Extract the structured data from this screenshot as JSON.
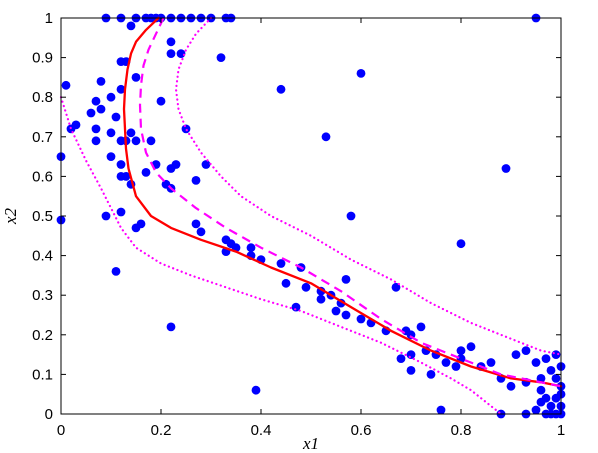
{
  "chart_data": {
    "type": "scatter",
    "title": "",
    "xlabel": "x1",
    "ylabel": "x2",
    "xlim": [
      0,
      1
    ],
    "ylim": [
      0,
      1
    ],
    "grid": false,
    "x_ticks": [
      "0",
      "0.2",
      "0.4",
      "0.6",
      "0.8",
      "1"
    ],
    "y_ticks": [
      "0",
      "0.1",
      "0.2",
      "0.3",
      "0.4",
      "0.5",
      "0.6",
      "0.7",
      "0.8",
      "0.9",
      "1"
    ],
    "colors": {
      "points": "#0000ff",
      "solid_curve": "#ff0000",
      "dashed_curve": "#ff00ff",
      "dotted_bounds": "#ff00ff",
      "axes": "#000000"
    },
    "points": [
      [
        0.09,
        1.0
      ],
      [
        0.12,
        1.0
      ],
      [
        0.15,
        1.0
      ],
      [
        0.17,
        1.0
      ],
      [
        0.18,
        1.0
      ],
      [
        0.19,
        1.0
      ],
      [
        0.2,
        1.0
      ],
      [
        0.22,
        1.0
      ],
      [
        0.24,
        1.0
      ],
      [
        0.26,
        1.0
      ],
      [
        0.28,
        1.0
      ],
      [
        0.3,
        1.0
      ],
      [
        0.33,
        1.0
      ],
      [
        0.34,
        1.0
      ],
      [
        0.95,
        1.0
      ],
      [
        0.14,
        0.98
      ],
      [
        0.22,
        0.94
      ],
      [
        0.24,
        0.91
      ],
      [
        0.22,
        0.91
      ],
      [
        0.32,
        0.9
      ],
      [
        0.12,
        0.89
      ],
      [
        0.13,
        0.89
      ],
      [
        0.15,
        0.85
      ],
      [
        0.01,
        0.83
      ],
      [
        0.08,
        0.84
      ],
      [
        0.6,
        0.86
      ],
      [
        0.44,
        0.82
      ],
      [
        0.1,
        0.8
      ],
      [
        0.12,
        0.82
      ],
      [
        0.07,
        0.79
      ],
      [
        0.06,
        0.76
      ],
      [
        0.08,
        0.77
      ],
      [
        0.11,
        0.75
      ],
      [
        0.2,
        0.79
      ],
      [
        0.02,
        0.72
      ],
      [
        0.03,
        0.73
      ],
      [
        0.07,
        0.72
      ],
      [
        0.1,
        0.71
      ],
      [
        0.14,
        0.71
      ],
      [
        0.25,
        0.72
      ],
      [
        0.07,
        0.69
      ],
      [
        0.1,
        0.65
      ],
      [
        0.12,
        0.69
      ],
      [
        0.13,
        0.69
      ],
      [
        0.12,
        0.63
      ],
      [
        0.15,
        0.69
      ],
      [
        0.18,
        0.69
      ],
      [
        0.19,
        0.63
      ],
      [
        0.22,
        0.62
      ],
      [
        0.23,
        0.63
      ],
      [
        0.29,
        0.63
      ],
      [
        0.53,
        0.7
      ],
      [
        0.0,
        0.65
      ],
      [
        0.12,
        0.6
      ],
      [
        0.13,
        0.6
      ],
      [
        0.14,
        0.58
      ],
      [
        0.17,
        0.61
      ],
      [
        0.21,
        0.58
      ],
      [
        0.22,
        0.57
      ],
      [
        0.27,
        0.59
      ],
      [
        0.89,
        0.62
      ],
      [
        0.0,
        0.49
      ],
      [
        0.09,
        0.5
      ],
      [
        0.12,
        0.51
      ],
      [
        0.15,
        0.47
      ],
      [
        0.16,
        0.48
      ],
      [
        0.27,
        0.48
      ],
      [
        0.28,
        0.46
      ],
      [
        0.58,
        0.5
      ],
      [
        0.33,
        0.44
      ],
      [
        0.34,
        0.43
      ],
      [
        0.35,
        0.42
      ],
      [
        0.33,
        0.41
      ],
      [
        0.38,
        0.42
      ],
      [
        0.38,
        0.4
      ],
      [
        0.4,
        0.39
      ],
      [
        0.44,
        0.38
      ],
      [
        0.48,
        0.37
      ],
      [
        0.8,
        0.43
      ],
      [
        0.11,
        0.36
      ],
      [
        0.45,
        0.33
      ],
      [
        0.49,
        0.32
      ],
      [
        0.52,
        0.31
      ],
      [
        0.52,
        0.29
      ],
      [
        0.54,
        0.3
      ],
      [
        0.56,
        0.28
      ],
      [
        0.57,
        0.34
      ],
      [
        0.67,
        0.32
      ],
      [
        0.47,
        0.27
      ],
      [
        0.55,
        0.26
      ],
      [
        0.57,
        0.25
      ],
      [
        0.6,
        0.24
      ],
      [
        0.62,
        0.23
      ],
      [
        0.65,
        0.21
      ],
      [
        0.69,
        0.21
      ],
      [
        0.7,
        0.2
      ],
      [
        0.72,
        0.22
      ],
      [
        0.22,
        0.22
      ],
      [
        0.7,
        0.15
      ],
      [
        0.73,
        0.16
      ],
      [
        0.75,
        0.15
      ],
      [
        0.77,
        0.13
      ],
      [
        0.8,
        0.14
      ],
      [
        0.84,
        0.12
      ],
      [
        0.86,
        0.13
      ],
      [
        0.8,
        0.16
      ],
      [
        0.82,
        0.17
      ],
      [
        0.68,
        0.14
      ],
      [
        0.7,
        0.11
      ],
      [
        0.74,
        0.1
      ],
      [
        0.79,
        0.12
      ],
      [
        0.91,
        0.15
      ],
      [
        0.93,
        0.16
      ],
      [
        0.95,
        0.13
      ],
      [
        0.97,
        0.14
      ],
      [
        0.99,
        0.15
      ],
      [
        1.0,
        0.12
      ],
      [
        0.88,
        0.09
      ],
      [
        0.9,
        0.07
      ],
      [
        0.93,
        0.08
      ],
      [
        0.96,
        0.09
      ],
      [
        0.98,
        0.11
      ],
      [
        0.99,
        0.09
      ],
      [
        1.0,
        0.07
      ],
      [
        1.0,
        0.05
      ],
      [
        0.99,
        0.04
      ],
      [
        0.97,
        0.04
      ],
      [
        0.96,
        0.06
      ],
      [
        0.39,
        0.06
      ],
      [
        0.76,
        0.01
      ],
      [
        0.88,
        0.0
      ],
      [
        0.93,
        0.0
      ],
      [
        0.95,
        0.01
      ],
      [
        0.97,
        0.0
      ],
      [
        0.98,
        0.02
      ],
      [
        0.99,
        0.0
      ],
      [
        1.0,
        0.0
      ],
      [
        1.0,
        0.02
      ],
      [
        0.98,
        0.0
      ],
      [
        0.96,
        0.03
      ]
    ],
    "series": [
      {
        "style": "solid",
        "x": [
          0.195,
          0.17,
          0.15,
          0.14,
          0.133,
          0.128,
          0.126,
          0.128,
          0.13,
          0.135,
          0.15,
          0.18,
          0.22,
          0.28,
          0.35,
          0.42,
          0.5,
          0.58,
          0.66,
          0.74,
          0.82,
          0.9,
          0.96,
          1.0
        ],
        "y": [
          1.0,
          0.97,
          0.94,
          0.91,
          0.87,
          0.82,
          0.77,
          0.72,
          0.67,
          0.62,
          0.55,
          0.5,
          0.47,
          0.44,
          0.41,
          0.37,
          0.33,
          0.27,
          0.21,
          0.16,
          0.12,
          0.09,
          0.08,
          0.07
        ]
      },
      {
        "style": "dashed",
        "x": [
          0.205,
          0.19,
          0.175,
          0.165,
          0.16,
          0.158,
          0.16,
          0.17,
          0.19,
          0.22,
          0.27,
          0.33,
          0.4,
          0.48,
          0.56,
          0.64,
          0.72,
          0.8,
          0.88,
          0.96,
          1.0
        ],
        "y": [
          1.0,
          0.96,
          0.92,
          0.88,
          0.83,
          0.78,
          0.72,
          0.66,
          0.61,
          0.57,
          0.52,
          0.47,
          0.42,
          0.37,
          0.31,
          0.24,
          0.18,
          0.14,
          0.1,
          0.08,
          0.07
        ]
      },
      {
        "style": "dotted",
        "x": [
          0.3,
          0.27,
          0.25,
          0.235,
          0.23,
          0.235,
          0.25,
          0.28,
          0.32,
          0.36,
          0.42,
          0.5,
          0.58,
          0.66,
          0.74,
          0.82,
          0.9,
          0.96,
          1.0
        ],
        "y": [
          1.0,
          0.96,
          0.92,
          0.87,
          0.82,
          0.77,
          0.72,
          0.66,
          0.6,
          0.55,
          0.5,
          0.45,
          0.39,
          0.34,
          0.28,
          0.23,
          0.19,
          0.16,
          0.15
        ]
      },
      {
        "style": "dotted",
        "x": [
          0.0,
          0.02,
          0.05,
          0.08,
          0.1,
          0.12,
          0.15,
          0.2,
          0.26,
          0.33,
          0.4,
          0.48,
          0.56,
          0.64,
          0.72,
          0.78,
          0.82,
          0.85,
          0.87,
          0.88
        ],
        "y": [
          0.8,
          0.72,
          0.64,
          0.57,
          0.52,
          0.47,
          0.42,
          0.38,
          0.35,
          0.32,
          0.29,
          0.26,
          0.22,
          0.18,
          0.13,
          0.09,
          0.06,
          0.03,
          0.01,
          0.0
        ]
      }
    ]
  }
}
